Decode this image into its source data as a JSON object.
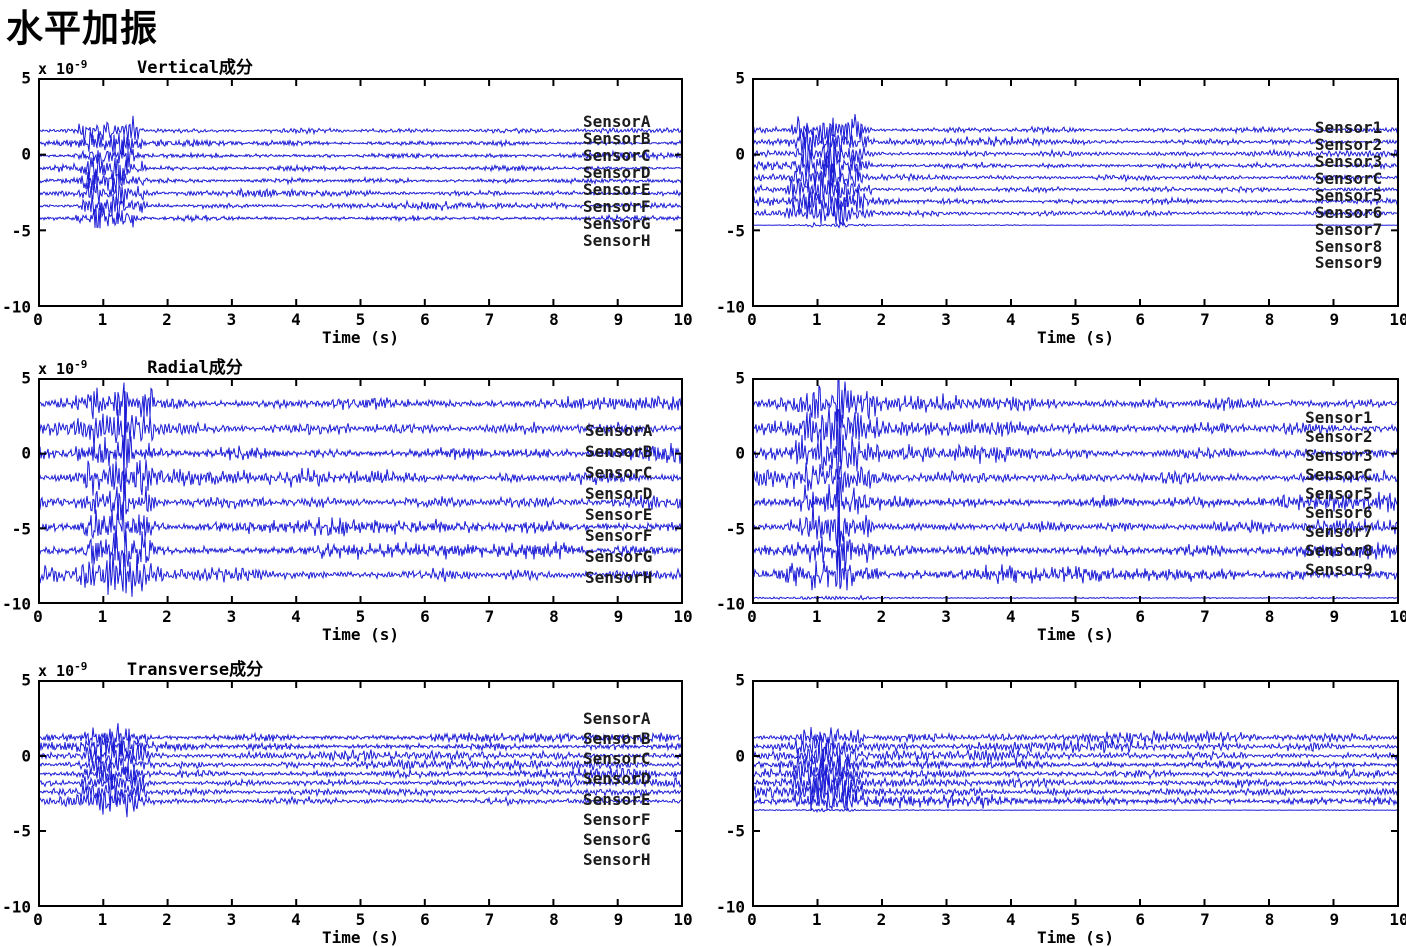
{
  "page": {
    "title": "水平加振"
  },
  "style": {
    "trace_color": "#1c1cd6",
    "axis_color": "#000000",
    "text_color": "#000000"
  },
  "chart_data": [
    {
      "id": "vertical-left",
      "type": "line",
      "title": "Vertical成分",
      "scale_base": "x 10",
      "scale_exp": "-9",
      "xlabel": "Time (s)",
      "xlim": [
        0,
        10
      ],
      "ylim": [
        -10,
        5
      ],
      "xticks": [
        "0",
        "1",
        "2",
        "3",
        "4",
        "5",
        "6",
        "7",
        "8",
        "9",
        "10"
      ],
      "yticks": [
        "5",
        "0",
        "-5",
        "-10"
      ],
      "grid": false,
      "burst": {
        "start": 0.55,
        "end": 1.7,
        "amp": 1.0
      },
      "noise_amp": 0.13,
      "spike_amp": 0,
      "seed": 11,
      "show_labels": true,
      "label_x": 8.45,
      "label_y_start": 2.12,
      "label_y_step": 1.11,
      "sensors": [
        {
          "label": "SensorA",
          "offset": 1.55
        },
        {
          "label": "SensorB",
          "offset": 0.73
        },
        {
          "label": "SensorC",
          "offset": -0.09
        },
        {
          "label": "SensorD",
          "offset": -0.91
        },
        {
          "label": "SensorE",
          "offset": -1.73
        },
        {
          "label": "SensorF",
          "offset": -2.55
        },
        {
          "label": "SensorG",
          "offset": -3.37
        },
        {
          "label": "SensorH",
          "offset": -4.19
        }
      ]
    },
    {
      "id": "vertical-right",
      "type": "line",
      "title": "",
      "scale_base": "",
      "scale_exp": "",
      "xlabel": "Time (s)",
      "xlim": [
        0,
        10
      ],
      "ylim": [
        -10,
        5
      ],
      "xticks": [
        "0",
        "1",
        "2",
        "3",
        "4",
        "5",
        "6",
        "7",
        "8",
        "9",
        "10"
      ],
      "yticks": [
        "5",
        "0",
        "-5",
        "-10"
      ],
      "grid": false,
      "burst": {
        "start": 0.5,
        "end": 1.9,
        "amp": 1.25
      },
      "noise_amp": 0.14,
      "spike_amp": 0,
      "seed": 22,
      "show_labels": true,
      "label_x": 8.7,
      "label_y_start": 1.73,
      "label_y_step": 1.11,
      "sensors": [
        {
          "label": "Sensor1",
          "offset": 1.6
        },
        {
          "label": "Sensor2",
          "offset": 0.82
        },
        {
          "label": "Sensor3",
          "offset": 0.04
        },
        {
          "label": "SensorC",
          "offset": -0.74
        },
        {
          "label": "Sensor5",
          "offset": -1.52
        },
        {
          "label": "Sensor6",
          "offset": -2.3
        },
        {
          "label": "Sensor7",
          "offset": -3.08
        },
        {
          "label": "Sensor8",
          "offset": -3.86
        },
        {
          "label": "Sensor9",
          "offset": -4.64,
          "quiet": true
        }
      ]
    },
    {
      "id": "radial-left",
      "type": "line",
      "title": "Radial成分",
      "scale_base": "x 10",
      "scale_exp": "-9",
      "xlabel": "Time (s)",
      "xlim": [
        0,
        10
      ],
      "ylim": [
        -10,
        5
      ],
      "xticks": [
        "0",
        "1",
        "2",
        "3",
        "4",
        "5",
        "6",
        "7",
        "8",
        "9",
        "10"
      ],
      "yticks": [
        "5",
        "0",
        "-5",
        "-10"
      ],
      "grid": false,
      "burst": {
        "start": 0.5,
        "end": 2.0,
        "amp": 1.15
      },
      "noise_amp": 0.3,
      "spike_amp": 2.3,
      "seed": 33,
      "show_labels": true,
      "label_x": 8.48,
      "label_y_start": 1.48,
      "label_y_step": 1.39,
      "sensors": [
        {
          "label": "SensorA",
          "offset": 3.3
        },
        {
          "label": "SensorB",
          "offset": 1.65
        },
        {
          "label": "SensorC",
          "offset": 0.0
        },
        {
          "label": "SensorD",
          "offset": -1.62
        },
        {
          "label": "SensorE",
          "offset": -3.25
        },
        {
          "label": "SensorF",
          "offset": -4.88
        },
        {
          "label": "SensorG",
          "offset": -6.45
        },
        {
          "label": "SensorH",
          "offset": -8.05
        }
      ]
    },
    {
      "id": "radial-right",
      "type": "line",
      "title": "",
      "scale_base": "",
      "scale_exp": "",
      "xlabel": "Time (s)",
      "xlim": [
        0,
        10
      ],
      "ylim": [
        -10,
        5
      ],
      "xticks": [
        "0",
        "1",
        "2",
        "3",
        "4",
        "5",
        "6",
        "7",
        "8",
        "9",
        "10"
      ],
      "yticks": [
        "5",
        "0",
        "-5",
        "-10"
      ],
      "grid": false,
      "burst": {
        "start": 0.5,
        "end": 2.0,
        "amp": 1.15
      },
      "noise_amp": 0.3,
      "spike_amp": 2.3,
      "seed": 44,
      "show_labels": true,
      "label_x": 8.55,
      "label_y_start": 2.35,
      "label_y_step": 1.26,
      "sensors": [
        {
          "label": "Sensor1",
          "offset": 3.3
        },
        {
          "label": "Sensor2",
          "offset": 1.65
        },
        {
          "label": "Sensor3",
          "offset": 0.0
        },
        {
          "label": "SensorC",
          "offset": -1.62
        },
        {
          "label": "Sensor5",
          "offset": -3.25
        },
        {
          "label": "Sensor6",
          "offset": -4.88
        },
        {
          "label": "Sensor7",
          "offset": -6.45
        },
        {
          "label": "Sensor8",
          "offset": -8.05
        },
        {
          "label": "Sensor9",
          "offset": -9.6,
          "quiet": true
        }
      ]
    },
    {
      "id": "transverse-left",
      "type": "line",
      "title": "Transverse成分",
      "scale_base": "x 10",
      "scale_exp": "-9",
      "xlabel": "Time (s)",
      "xlim": [
        0,
        10
      ],
      "ylim": [
        -10,
        5
      ],
      "xticks": [
        "0",
        "1",
        "2",
        "3",
        "4",
        "5",
        "6",
        "7",
        "8",
        "9",
        "10"
      ],
      "yticks": [
        "5",
        "0",
        "-5",
        "-10"
      ],
      "grid": false,
      "burst": {
        "start": 0.6,
        "end": 1.8,
        "amp": 0.85
      },
      "noise_amp": 0.18,
      "spike_amp": 0,
      "seed": 55,
      "show_labels": true,
      "label_x": 8.45,
      "label_y_start": 2.42,
      "label_y_step": 1.33,
      "sensors": [
        {
          "label": "SensorA",
          "offset": 1.2
        },
        {
          "label": "SensorB",
          "offset": 0.6
        },
        {
          "label": "SensorC",
          "offset": 0.0
        },
        {
          "label": "SensorD",
          "offset": -0.6
        },
        {
          "label": "SensorE",
          "offset": -1.2
        },
        {
          "label": "SensorF",
          "offset": -1.8
        },
        {
          "label": "SensorG",
          "offset": -2.4
        },
        {
          "label": "SensorH",
          "offset": -3.0
        }
      ]
    },
    {
      "id": "transverse-right",
      "type": "line",
      "title": "",
      "scale_base": "",
      "scale_exp": "",
      "xlabel": "Time (s)",
      "xlim": [
        0,
        10
      ],
      "ylim": [
        -10,
        5
      ],
      "xticks": [
        "0",
        "1",
        "2",
        "3",
        "4",
        "5",
        "6",
        "7",
        "8",
        "9",
        "10"
      ],
      "yticks": [
        "5",
        "0",
        "-5",
        "-10"
      ],
      "grid": false,
      "burst": {
        "start": 0.6,
        "end": 1.8,
        "amp": 0.85
      },
      "noise_amp": 0.2,
      "spike_amp": 0,
      "seed": 66,
      "show_labels": false,
      "label_x": 0,
      "label_y_start": 0,
      "label_y_step": 0,
      "sensors": [
        {
          "offset": 1.2
        },
        {
          "offset": 0.6
        },
        {
          "offset": 0.0
        },
        {
          "offset": -0.6
        },
        {
          "offset": -1.2
        },
        {
          "offset": -1.8
        },
        {
          "offset": -2.4
        },
        {
          "offset": -3.0
        },
        {
          "offset": -3.6,
          "quiet": true
        }
      ]
    }
  ]
}
